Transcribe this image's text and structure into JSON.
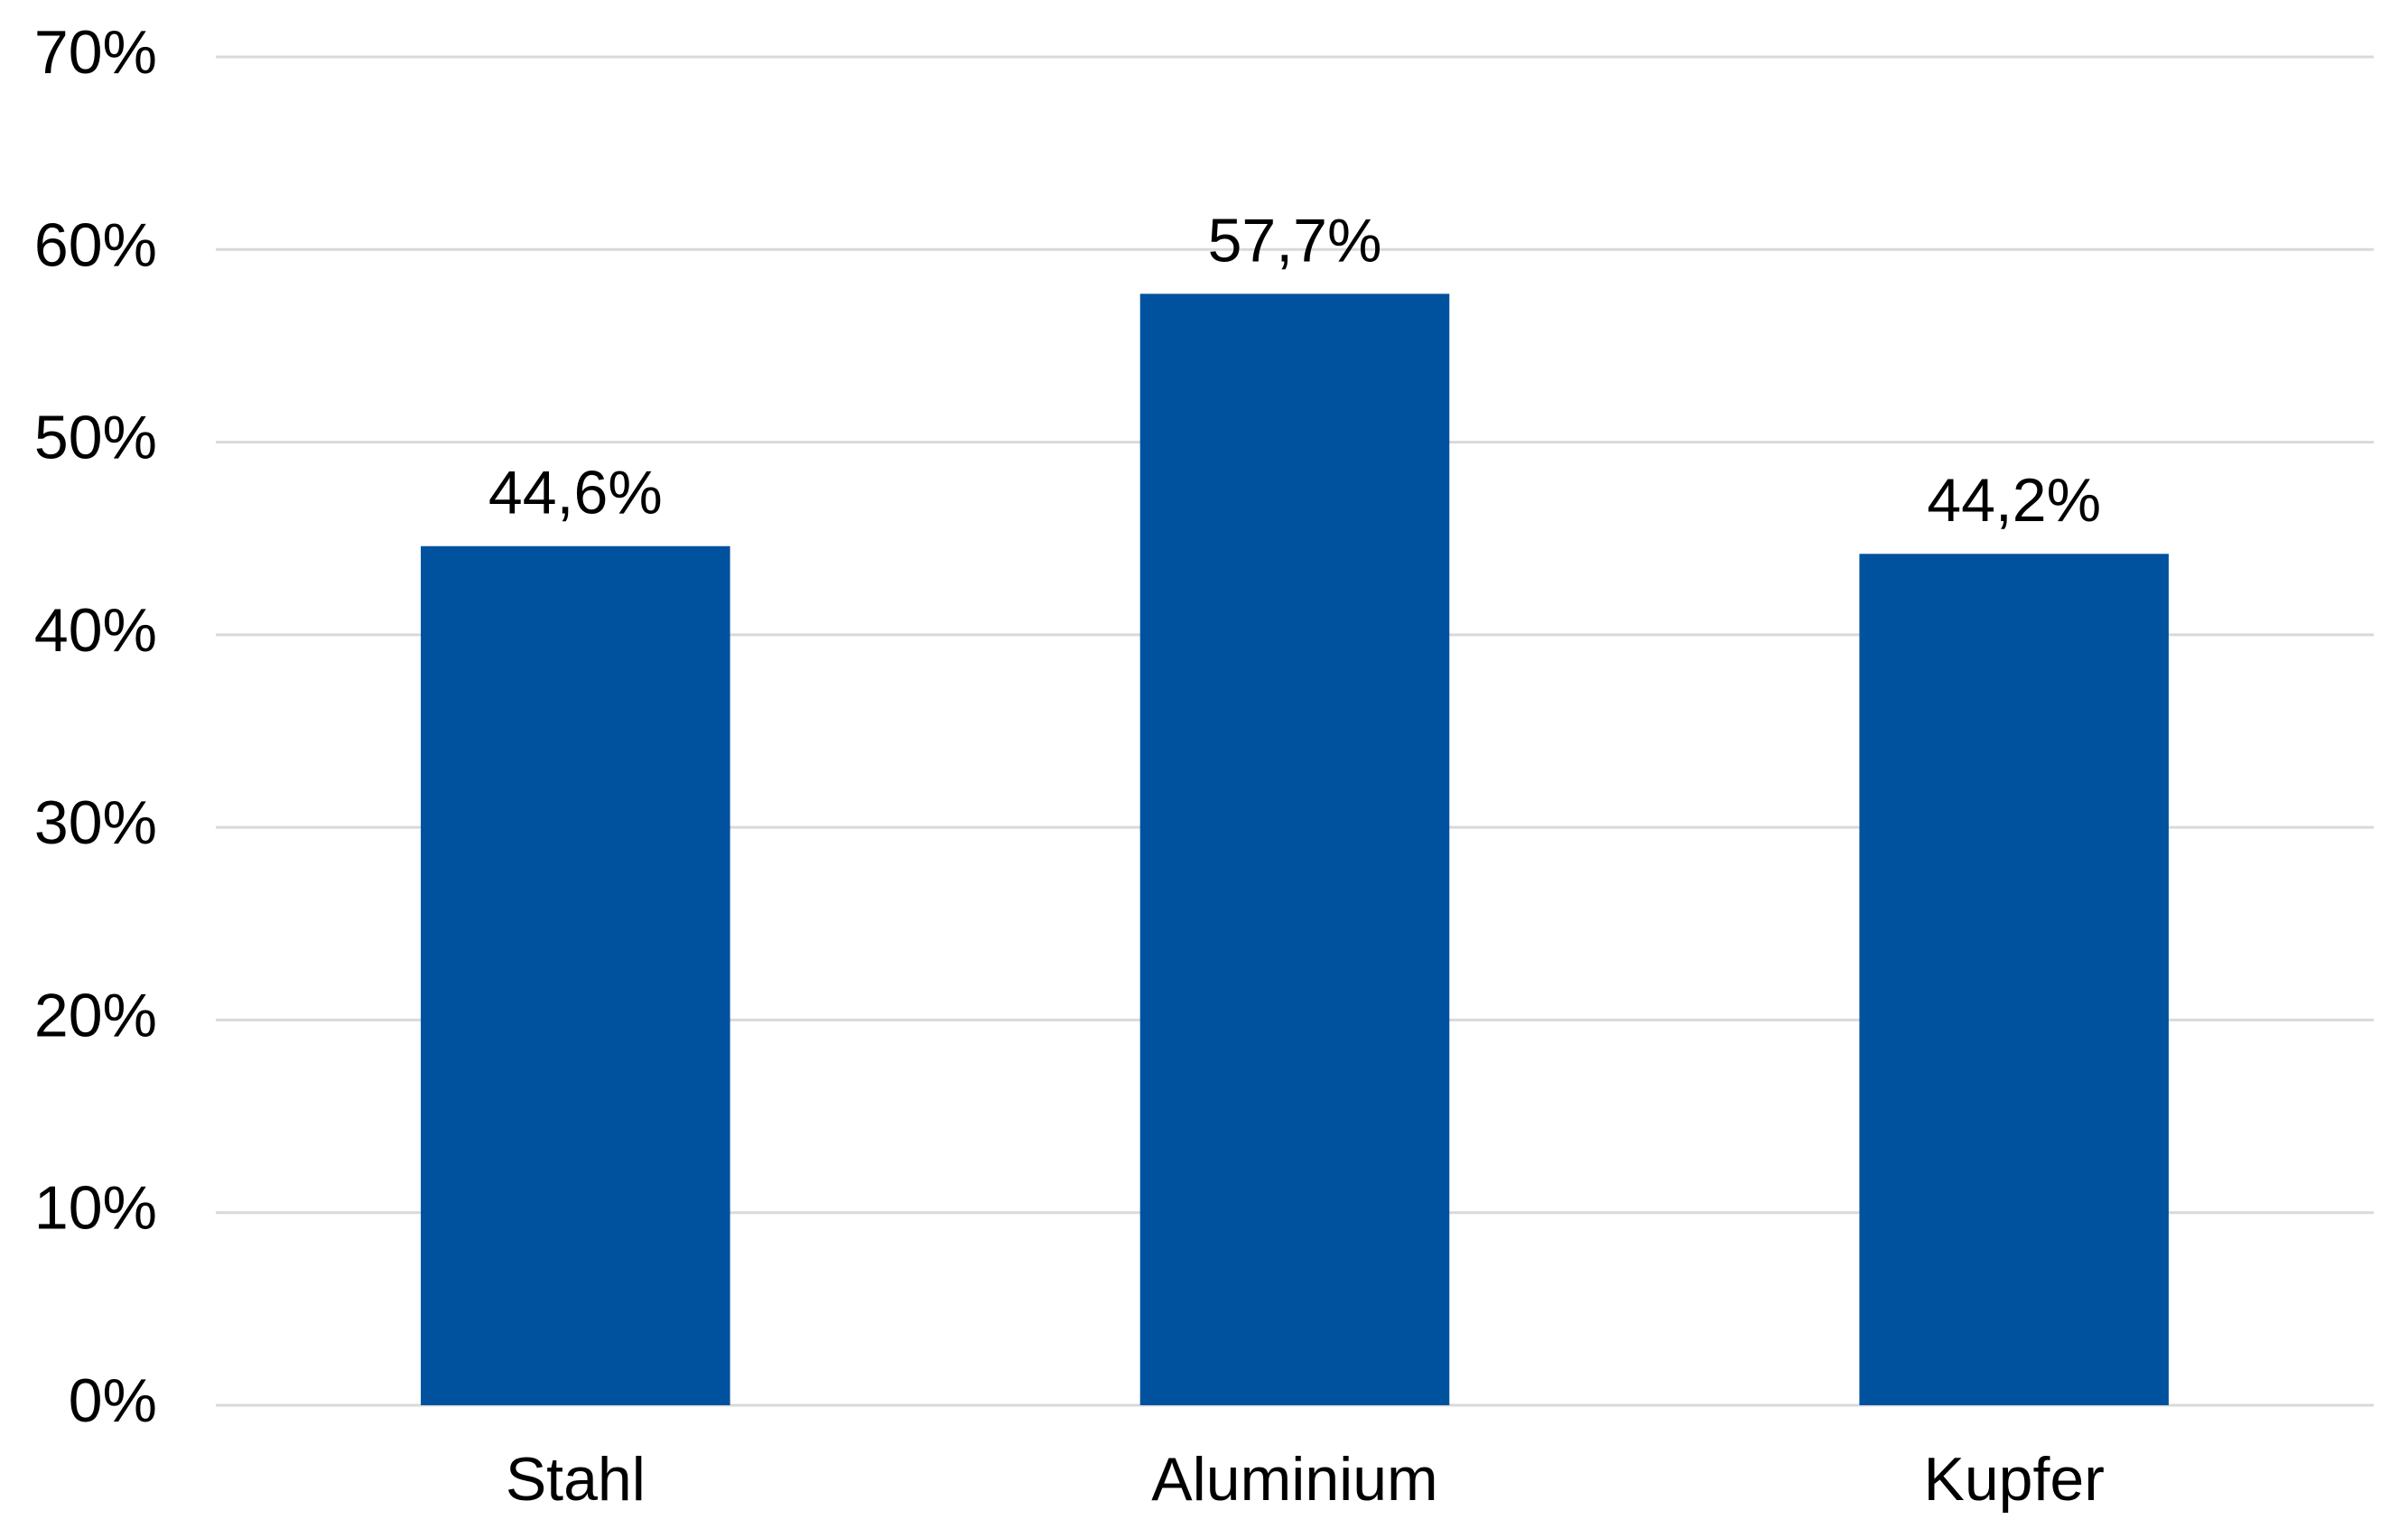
{
  "chart_data": {
    "type": "bar",
    "categories": [
      "Stahl",
      "Aluminium",
      "Kupfer"
    ],
    "values": [
      44.6,
      57.7,
      44.2
    ],
    "value_labels": [
      "44,6%",
      "57,7%",
      "44,2%"
    ],
    "color": "#00529f",
    "ylim": [
      0,
      70
    ],
    "yticks": [
      {
        "value": 0,
        "label": "0%"
      },
      {
        "value": 10,
        "label": "10%"
      },
      {
        "value": 20,
        "label": "20%"
      },
      {
        "value": 30,
        "label": "30%"
      },
      {
        "value": 40,
        "label": "40%"
      },
      {
        "value": 50,
        "label": "50%"
      },
      {
        "value": 60,
        "label": "60%"
      },
      {
        "value": 70,
        "label": "70%"
      }
    ],
    "grid": true
  }
}
